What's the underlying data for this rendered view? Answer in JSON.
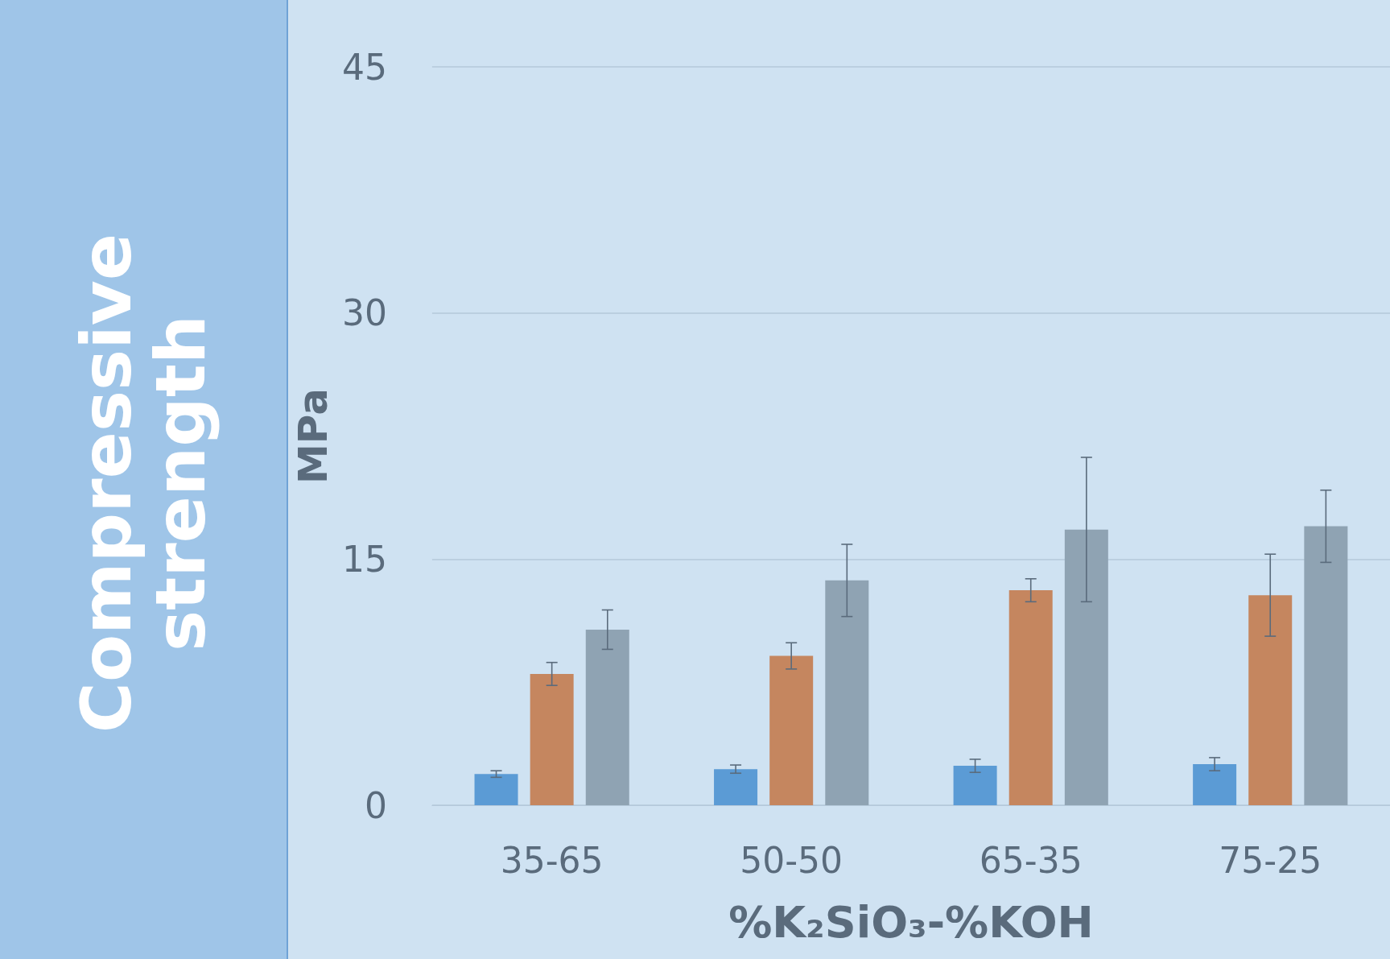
{
  "chart_data": {
    "type": "bar",
    "title": "Compressive strength",
    "xlabel": "%K₂SiO₃-%KOH",
    "ylabel": "MPa",
    "categories": [
      "35-65",
      "50-50",
      "65-35",
      "75-25"
    ],
    "series": [
      {
        "color": "#5b9bd5",
        "values": [
          1.9,
          2.2,
          2.4,
          2.5
        ],
        "errors": [
          0.2,
          0.25,
          0.4,
          0.4
        ]
      },
      {
        "color": "#c5865f",
        "values": [
          8.0,
          9.1,
          13.1,
          12.8
        ],
        "errors": [
          0.7,
          0.8,
          0.7,
          2.5
        ]
      },
      {
        "color": "#8fa3b3",
        "values": [
          10.7,
          13.7,
          16.8,
          17.0
        ],
        "errors": [
          1.2,
          2.2,
          4.4,
          2.2
        ]
      }
    ],
    "ylim": [
      0,
      45
    ],
    "yticks": [
      0,
      15,
      30,
      45
    ],
    "grid": "y"
  }
}
